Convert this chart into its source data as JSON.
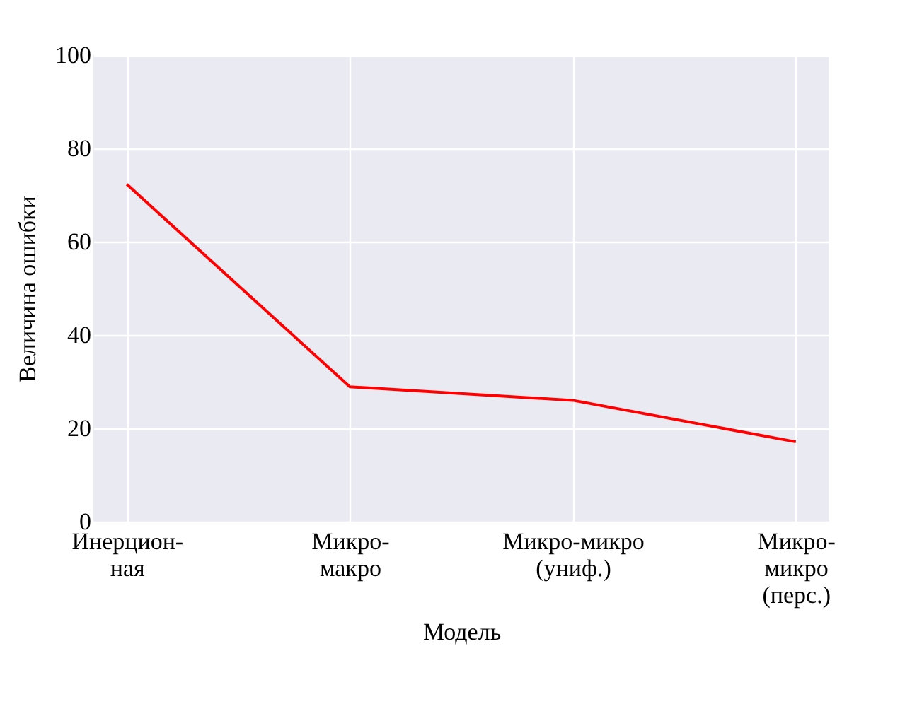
{
  "chart_data": {
    "type": "line",
    "xlabel": "Модель",
    "ylabel": "Величина ошибки",
    "categories": [
      "Инерцион-\nная",
      "Микро-\nмакро",
      "Микро-микро\n(униф.)",
      "Микро-\nмикро\n(перс.)"
    ],
    "series": [
      {
        "color": "#ff0000",
        "values": [
          72.3,
          28.9,
          26.0,
          17.1
        ]
      }
    ],
    "ylim": [
      0,
      100
    ],
    "yticks": [
      0,
      20,
      40,
      60,
      80,
      100
    ],
    "grid": true,
    "line_style": "solid"
  }
}
